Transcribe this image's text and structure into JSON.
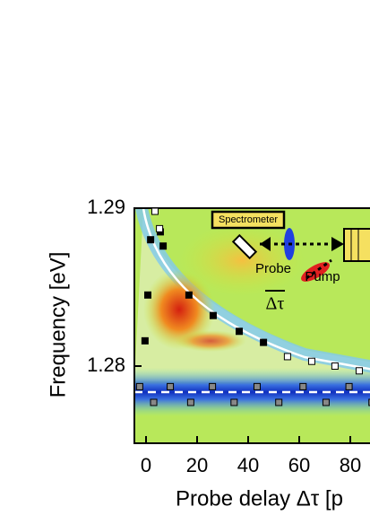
{
  "chart_data": {
    "type": "scatter",
    "x_label": "Probe delay Δτ [p",
    "y_label": "Frequency [eV]",
    "xlim": [
      -5,
      100
    ],
    "ylim": [
      1.275,
      1.29
    ],
    "xticks": [
      0,
      20,
      40,
      60,
      80
    ],
    "yticks": [
      1.28,
      1.29
    ],
    "annotations": [
      "Spectrometer",
      "Probe",
      "Pump",
      "Δτ"
    ],
    "series": [
      {
        "color": "#000000",
        "x": [
          1.8,
          0.7,
          -0.4,
          5.6,
          6.7,
          16.8,
          26.3,
          36.5,
          46
        ],
        "y": [
          1.288,
          1.2845,
          1.2816,
          1.2885,
          1.2876,
          1.2845,
          1.2832,
          1.2822,
          1.2815
        ]
      },
      {
        "color": "#ffffff",
        "x": [
          3.5,
          5.3,
          55.4,
          64.9,
          74,
          83.5
        ],
        "y": [
          1.2898,
          1.2887,
          1.2806,
          1.2803,
          1.28,
          1.2797
        ]
      },
      {
        "color": "#888888",
        "x": [
          -2.5,
          3,
          9.5,
          17.5,
          26,
          34.5,
          43.5,
          52,
          61.5,
          70.5,
          79.5,
          88.5
        ],
        "y": [
          1.2787,
          1.2777,
          1.2787,
          1.2777,
          1.2787,
          1.2777,
          1.2787,
          1.2777,
          1.2787,
          1.2777,
          1.2787,
          1.2777
        ]
      }
    ]
  }
}
